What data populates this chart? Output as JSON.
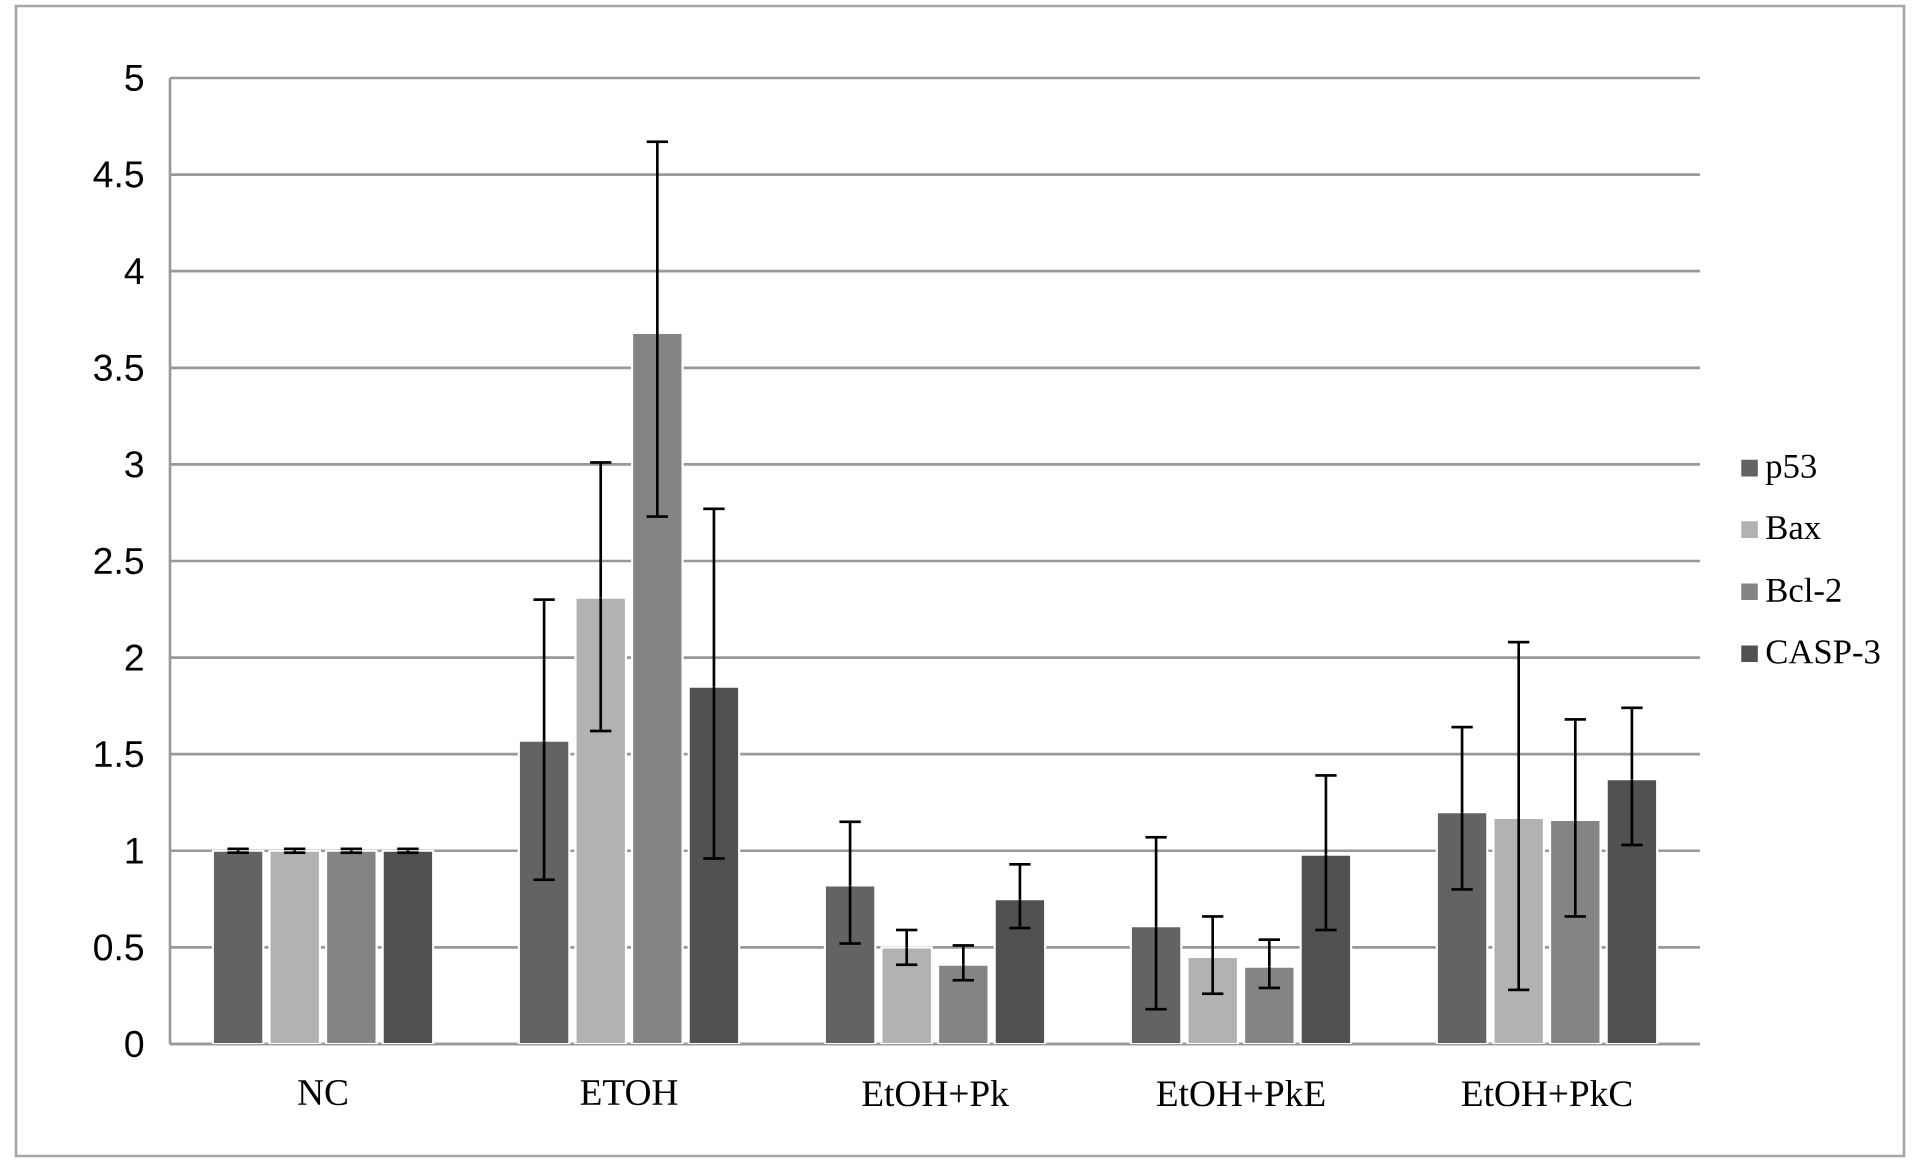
{
  "chart_data": {
    "type": "bar",
    "categories": [
      "NC",
      "ETOH",
      "EtOH+Pk",
      "EtOH+PkE",
      "EtOH+PkC"
    ],
    "series": [
      {
        "name": "p53",
        "color": "#636363",
        "values": [
          1.0,
          1.57,
          0.82,
          0.61,
          1.2
        ],
        "errors": [
          [
            0.99,
            1.01
          ],
          [
            0.85,
            2.3
          ],
          [
            0.52,
            1.15
          ],
          [
            0.18,
            1.07
          ],
          [
            0.8,
            1.64
          ]
        ]
      },
      {
        "name": "Bax",
        "color": "#b2b2b2",
        "values": [
          1.0,
          2.31,
          0.5,
          0.45,
          1.17
        ],
        "errors": [
          [
            0.99,
            1.01
          ],
          [
            1.62,
            3.01
          ],
          [
            0.41,
            0.59
          ],
          [
            0.26,
            0.66
          ],
          [
            0.28,
            2.08
          ]
        ]
      },
      {
        "name": "Bcl-2",
        "color": "#848484",
        "values": [
          1.0,
          3.68,
          0.41,
          0.4,
          1.16
        ],
        "errors": [
          [
            0.99,
            1.01
          ],
          [
            2.73,
            4.67
          ],
          [
            0.33,
            0.51
          ],
          [
            0.29,
            0.54
          ],
          [
            0.66,
            1.68
          ]
        ]
      },
      {
        "name": "CASP-3",
        "color": "#515151",
        "values": [
          1.0,
          1.85,
          0.75,
          0.98,
          1.37
        ],
        "errors": [
          [
            0.99,
            1.01
          ],
          [
            0.96,
            2.77
          ],
          [
            0.6,
            0.93
          ],
          [
            0.59,
            1.39
          ],
          [
            1.03,
            1.74
          ]
        ]
      }
    ],
    "ylim": [
      0,
      5
    ],
    "yticks": [
      0,
      0.5,
      1,
      1.5,
      2,
      2.5,
      3,
      3.5,
      4,
      4.5,
      5
    ],
    "grid": "y",
    "legend": "right"
  }
}
